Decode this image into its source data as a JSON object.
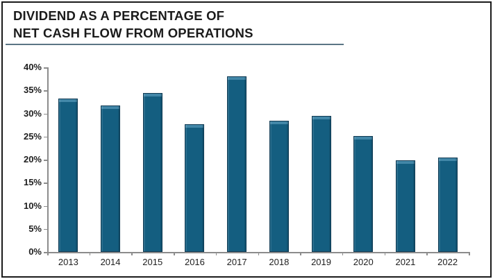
{
  "header": {
    "title_line1": "DIVIDEND AS A PERCENTAGE OF",
    "title_line2": "NET CASH FLOW FROM OPERATIONS"
  },
  "chart_data": {
    "type": "bar",
    "title": "DIVIDEND AS A PERCENTAGE OF NET CASH FLOW FROM OPERATIONS",
    "categories": [
      "2013",
      "2014",
      "2015",
      "2016",
      "2017",
      "2018",
      "2019",
      "2020",
      "2021",
      "2022"
    ],
    "values": [
      33.3,
      31.8,
      34.4,
      27.7,
      38.0,
      28.4,
      29.4,
      25.1,
      19.8,
      20.5
    ],
    "xlabel": "",
    "ylabel": "",
    "ylim": [
      0,
      40
    ],
    "ytick_step": 5,
    "ytick_labels": [
      "0%",
      "5%",
      "10%",
      "15%",
      "20%",
      "25%",
      "30%",
      "35%",
      "40%"
    ],
    "grid": false,
    "legend": "none",
    "colors": {
      "bar_fill": "#145e80",
      "bar_border": "#0f3952",
      "bar_highlight": "#4287a8",
      "axis": "#8c8c8c",
      "title_underline": "#5b7585",
      "title_text": "#1b1b1b",
      "axis_text": "#1e1e1e",
      "frame_border": "#1a1a1a",
      "background": "#ffffff"
    }
  }
}
